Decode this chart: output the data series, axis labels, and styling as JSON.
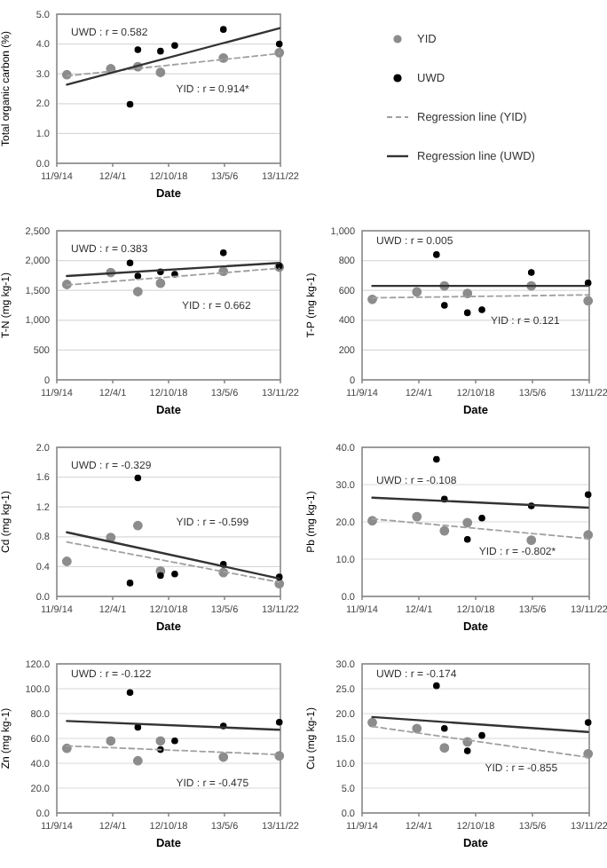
{
  "chart_data": [
    {
      "type": "scatter",
      "xlabel": "Date",
      "ylabel": "Total organic carbon (%)",
      "xlim": [
        "2011-09-14",
        "2013-11-22"
      ],
      "xticks": [
        {
          "value": "2011-09-14",
          "label": "11/9/14"
        },
        {
          "value": "2012-04-01",
          "label": "12/4/1"
        },
        {
          "value": "2012-10-18",
          "label": "12/10/18"
        },
        {
          "value": "2013-05-06",
          "label": "13/5/6"
        },
        {
          "value": "2013-11-22",
          "label": "13/11/22"
        }
      ],
      "ylim": [
        0,
        5
      ],
      "yticks": [
        {
          "value": 0,
          "label": "0.0"
        },
        {
          "value": 1,
          "label": "1.0"
        },
        {
          "value": 2,
          "label": "2.0"
        },
        {
          "value": 3,
          "label": "3.0"
        },
        {
          "value": 4,
          "label": "4.0"
        },
        {
          "value": 5,
          "label": "5.0"
        }
      ],
      "grid": "y",
      "legend": "right",
      "series": [
        {
          "name": "YID",
          "marker": "circle",
          "color": "#8c8c8c",
          "x": [
            "2011-10-20",
            "2012-03-25",
            "2012-06-30",
            "2012-09-19",
            "2013-05-02",
            "2013-11-18"
          ],
          "values": [
            2.97,
            3.17,
            3.24,
            3.05,
            3.53,
            3.71
          ]
        },
        {
          "name": "UWD",
          "marker": "circle",
          "color": "#000000",
          "x": [
            "2012-06-02",
            "2012-06-30",
            "2012-09-19",
            "2012-11-09",
            "2013-05-02",
            "2013-11-18"
          ],
          "values": [
            1.98,
            3.81,
            3.76,
            3.95,
            4.49,
            4.0
          ]
        },
        {
          "name": "Regression line (YID)",
          "type": "line",
          "marker": "none",
          "line_style": "dashed",
          "color": "#a0a0a0",
          "x": [
            "2011-10-20",
            "2013-11-18"
          ],
          "values": [
            2.93,
            3.68
          ]
        },
        {
          "name": "Regression line (UWD)",
          "type": "line",
          "marker": "none",
          "line_style": "solid",
          "color": "#333333",
          "x": [
            "2011-10-20",
            "2013-11-18"
          ],
          "values": [
            2.64,
            4.53
          ]
        }
      ],
      "annotations": [
        "UWD : r = 0.582",
        "YID : r = 0.914*"
      ]
    },
    {
      "type": "scatter",
      "xlabel": "Date",
      "ylabel": "T-N (mg kg-1)",
      "xlim": [
        "2011-09-14",
        "2013-11-22"
      ],
      "xticks": [
        {
          "value": "2011-09-14",
          "label": "11/9/14"
        },
        {
          "value": "2012-04-01",
          "label": "12/4/1"
        },
        {
          "value": "2012-10-18",
          "label": "12/10/18"
        },
        {
          "value": "2013-05-06",
          "label": "13/5/6"
        },
        {
          "value": "2013-11-22",
          "label": "13/11/22"
        }
      ],
      "ylim": [
        0,
        2500
      ],
      "yticks": [
        0,
        500,
        {
          "value": 1000,
          "label": "1,000"
        },
        {
          "value": 1500,
          "label": "1,500"
        },
        {
          "value": 2000,
          "label": "2,000"
        },
        {
          "value": 2500,
          "label": "2,500"
        }
      ],
      "grid": "y",
      "series": [
        {
          "marker": "circle",
          "color": "#8c8c8c",
          "x": [
            "2011-10-20",
            "2012-03-25",
            "2012-06-30",
            "2012-09-19",
            "2013-05-02",
            "2013-11-18"
          ],
          "values": [
            1600,
            1800,
            1480,
            1620,
            1820,
            1890
          ]
        },
        {
          "marker": "circle",
          "color": "#000000",
          "x": [
            "2012-06-02",
            "2012-06-30",
            "2012-09-19",
            "2012-11-09",
            "2013-05-02",
            "2013-11-18"
          ],
          "values": [
            1960,
            1740,
            1810,
            1770,
            2130,
            1910
          ]
        },
        {
          "type": "line",
          "marker": "none",
          "line_style": "dashed",
          "color": "#a0a0a0",
          "x": [
            "2011-10-20",
            "2013-11-18"
          ],
          "values": [
            1590,
            1870
          ]
        },
        {
          "type": "line",
          "marker": "none",
          "line_style": "solid",
          "color": "#333333",
          "x": [
            "2011-10-20",
            "2013-11-18"
          ],
          "values": [
            1740,
            1960
          ]
        }
      ],
      "annotations": [
        "UWD : r = 0.383",
        "YID : r = 0.662"
      ]
    },
    {
      "type": "scatter",
      "xlabel": "Date",
      "ylabel": "T-P (mg kg-1)",
      "xlim": [
        "2011-09-14",
        "2013-11-22"
      ],
      "xticks": [
        {
          "value": "2011-09-14",
          "label": "11/9/14"
        },
        {
          "value": "2012-04-01",
          "label": "12/4/1"
        },
        {
          "value": "2012-10-18",
          "label": "12/10/18"
        },
        {
          "value": "2013-05-06",
          "label": "13/5/6"
        },
        {
          "value": "2013-11-22",
          "label": "13/11/22"
        }
      ],
      "ylim": [
        0,
        1000
      ],
      "yticks": [
        0,
        200,
        400,
        600,
        800,
        {
          "value": 1000,
          "label": "1,000"
        }
      ],
      "grid": "y",
      "series": [
        {
          "marker": "circle",
          "color": "#8c8c8c",
          "x": [
            "2011-10-20",
            "2012-03-25",
            "2012-06-30",
            "2012-09-19",
            "2013-05-02",
            "2013-11-18"
          ],
          "values": [
            540,
            590,
            630,
            580,
            630,
            530
          ]
        },
        {
          "marker": "circle",
          "color": "#000000",
          "x": [
            "2012-06-02",
            "2012-06-30",
            "2012-09-19",
            "2012-11-09",
            "2013-05-02",
            "2013-11-18"
          ],
          "values": [
            840,
            500,
            450,
            470,
            720,
            650
          ]
        },
        {
          "type": "line",
          "marker": "none",
          "line_style": "dashed",
          "color": "#a0a0a0",
          "x": [
            "2011-10-20",
            "2013-11-18"
          ],
          "values": [
            550,
            570
          ]
        },
        {
          "type": "line",
          "marker": "none",
          "line_style": "solid",
          "color": "#333333",
          "x": [
            "2011-10-20",
            "2013-11-18"
          ],
          "values": [
            630,
            630
          ]
        }
      ],
      "annotations": [
        "UWD : r = 0.005",
        "YID : r = 0.121"
      ]
    },
    {
      "type": "scatter",
      "xlabel": "Date",
      "ylabel": "Cd (mg kg-1)",
      "xlim": [
        "2011-09-14",
        "2013-11-22"
      ],
      "xticks": [
        {
          "value": "2011-09-14",
          "label": "11/9/14"
        },
        {
          "value": "2012-04-01",
          "label": "12/4/1"
        },
        {
          "value": "2012-10-18",
          "label": "12/10/18"
        },
        {
          "value": "2013-05-06",
          "label": "13/5/6"
        },
        {
          "value": "2013-11-22",
          "label": "13/11/22"
        }
      ],
      "ylim": [
        0,
        2
      ],
      "yticks": [
        {
          "value": 0,
          "label": "0.0"
        },
        0.4,
        0.8,
        1.2,
        1.6,
        {
          "value": 2,
          "label": "2.0"
        }
      ],
      "grid": "y",
      "series": [
        {
          "marker": "circle",
          "color": "#8c8c8c",
          "x": [
            "2011-10-20",
            "2012-03-25",
            "2012-06-30",
            "2012-09-19",
            "2013-05-02",
            "2013-11-18"
          ],
          "values": [
            0.47,
            0.79,
            0.95,
            0.34,
            0.32,
            0.17
          ]
        },
        {
          "marker": "circle",
          "color": "#000000",
          "x": [
            "2012-06-02",
            "2012-06-30",
            "2012-09-19",
            "2012-11-09",
            "2013-05-02",
            "2013-11-18"
          ],
          "values": [
            0.18,
            1.59,
            0.28,
            0.3,
            0.43,
            0.26
          ]
        },
        {
          "type": "line",
          "marker": "none",
          "line_style": "dashed",
          "color": "#a0a0a0",
          "x": [
            "2011-10-20",
            "2013-11-18"
          ],
          "values": [
            0.73,
            0.19
          ]
        },
        {
          "type": "line",
          "marker": "none",
          "line_style": "solid",
          "color": "#333333",
          "x": [
            "2011-10-20",
            "2013-11-18"
          ],
          "values": [
            0.86,
            0.24
          ]
        }
      ],
      "annotations": [
        "UWD : r = -0.329",
        "YID : r = -0.599"
      ]
    },
    {
      "type": "scatter",
      "xlabel": "Date",
      "ylabel": "Pb (mg kg-1)",
      "xlim": [
        "2011-09-14",
        "2013-11-22"
      ],
      "xticks": [
        {
          "value": "2011-09-14",
          "label": "11/9/14"
        },
        {
          "value": "2012-04-01",
          "label": "12/4/1"
        },
        {
          "value": "2012-10-18",
          "label": "12/10/18"
        },
        {
          "value": "2013-05-06",
          "label": "13/5/6"
        },
        {
          "value": "2013-11-22",
          "label": "13/11/22"
        }
      ],
      "ylim": [
        0,
        40
      ],
      "yticks": [
        {
          "value": 0,
          "label": "0.0"
        },
        {
          "value": 10,
          "label": "10.0"
        },
        {
          "value": 20,
          "label": "20.0"
        },
        {
          "value": 30,
          "label": "30.0"
        },
        {
          "value": 40,
          "label": "40.0"
        }
      ],
      "grid": "y",
      "series": [
        {
          "marker": "circle",
          "color": "#8c8c8c",
          "x": [
            "2011-10-20",
            "2012-03-25",
            "2012-06-30",
            "2012-09-19",
            "2013-05-02",
            "2013-11-18"
          ],
          "values": [
            20.3,
            21.4,
            17.6,
            19.8,
            15.1,
            16.5
          ]
        },
        {
          "marker": "circle",
          "color": "#000000",
          "x": [
            "2012-06-02",
            "2012-06-30",
            "2012-09-19",
            "2012-11-09",
            "2013-05-02",
            "2013-11-18"
          ],
          "values": [
            36.8,
            26.1,
            15.3,
            21.0,
            24.3,
            27.3
          ]
        },
        {
          "type": "line",
          "marker": "none",
          "line_style": "dashed",
          "color": "#a0a0a0",
          "x": [
            "2011-10-20",
            "2013-11-18"
          ],
          "values": [
            20.8,
            15.5
          ]
        },
        {
          "type": "line",
          "marker": "none",
          "line_style": "solid",
          "color": "#333333",
          "x": [
            "2011-10-20",
            "2013-11-18"
          ],
          "values": [
            26.5,
            23.8
          ]
        }
      ],
      "annotations": [
        "UWD : r = -0.108",
        "YID : r = -0.802*"
      ]
    },
    {
      "type": "scatter",
      "xlabel": "Date",
      "ylabel": "Zn (mg kg-1)",
      "xlim": [
        "2011-09-14",
        "2013-11-22"
      ],
      "xticks": [
        {
          "value": "2011-09-14",
          "label": "11/9/14"
        },
        {
          "value": "2012-04-01",
          "label": "12/4/1"
        },
        {
          "value": "2012-10-18",
          "label": "12/10/18"
        },
        {
          "value": "2013-05-06",
          "label": "13/5/6"
        },
        {
          "value": "2013-11-22",
          "label": "13/11/22"
        }
      ],
      "ylim": [
        0,
        120
      ],
      "yticks": [
        {
          "value": 0,
          "label": "0.0"
        },
        {
          "value": 20,
          "label": "20.0"
        },
        {
          "value": 40,
          "label": "40.0"
        },
        {
          "value": 60,
          "label": "60.0"
        },
        {
          "value": 80,
          "label": "80.0"
        },
        {
          "value": 100,
          "label": "100.0"
        },
        {
          "value": 120,
          "label": "120.0"
        }
      ],
      "grid": "y",
      "series": [
        {
          "marker": "circle",
          "color": "#8c8c8c",
          "x": [
            "2011-10-20",
            "2012-03-25",
            "2012-06-30",
            "2012-09-19",
            "2013-05-02",
            "2013-11-18"
          ],
          "values": [
            52,
            58,
            42,
            58,
            45,
            46
          ]
        },
        {
          "marker": "circle",
          "color": "#000000",
          "x": [
            "2012-06-02",
            "2012-06-30",
            "2012-09-19",
            "2012-11-09",
            "2013-05-02",
            "2013-11-18"
          ],
          "values": [
            97,
            69,
            51,
            58,
            70,
            73
          ]
        },
        {
          "type": "line",
          "marker": "none",
          "line_style": "dashed",
          "color": "#a0a0a0",
          "x": [
            "2011-10-20",
            "2013-11-18"
          ],
          "values": [
            54,
            47
          ]
        },
        {
          "type": "line",
          "marker": "none",
          "line_style": "solid",
          "color": "#333333",
          "x": [
            "2011-10-20",
            "2013-11-18"
          ],
          "values": [
            74,
            67
          ]
        }
      ],
      "annotations": [
        "UWD : r = -0.122",
        "YID : r = -0.475"
      ]
    },
    {
      "type": "scatter",
      "xlabel": "Date",
      "ylabel": "Cu (mg kg-1)",
      "xlim": [
        "2011-09-14",
        "2013-11-22"
      ],
      "xticks": [
        {
          "value": "2011-09-14",
          "label": "11/9/14"
        },
        {
          "value": "2012-04-01",
          "label": "12/4/1"
        },
        {
          "value": "2012-10-18",
          "label": "12/10/18"
        },
        {
          "value": "2013-05-06",
          "label": "13/5/6"
        },
        {
          "value": "2013-11-22",
          "label": "13/11/22"
        }
      ],
      "ylim": [
        0,
        30
      ],
      "yticks": [
        {
          "value": 0,
          "label": "0.0"
        },
        {
          "value": 5,
          "label": "5.0"
        },
        {
          "value": 10,
          "label": "10.0"
        },
        {
          "value": 15,
          "label": "15.0"
        },
        {
          "value": 20,
          "label": "20.0"
        },
        {
          "value": 25,
          "label": "25.0"
        },
        {
          "value": 30,
          "label": "30.0"
        }
      ],
      "grid": "y",
      "series": [
        {
          "marker": "circle",
          "color": "#8c8c8c",
          "x": [
            "2011-10-20",
            "2012-03-25",
            "2012-06-30",
            "2012-09-19",
            "2013-11-18"
          ],
          "values": [
            18.2,
            17.0,
            13.1,
            14.3,
            11.9
          ]
        },
        {
          "marker": "circle",
          "color": "#000000",
          "x": [
            "2012-06-02",
            "2012-06-30",
            "2012-09-19",
            "2012-11-09",
            "2013-11-18"
          ],
          "values": [
            25.6,
            17.0,
            12.5,
            15.6,
            18.2
          ]
        },
        {
          "type": "line",
          "marker": "none",
          "line_style": "dashed",
          "color": "#a0a0a0",
          "x": [
            "2011-10-20",
            "2013-11-18"
          ],
          "values": [
            17.4,
            11.2
          ]
        },
        {
          "type": "line",
          "marker": "none",
          "line_style": "solid",
          "color": "#333333",
          "x": [
            "2011-10-20",
            "2013-11-18"
          ],
          "values": [
            19.3,
            16.3
          ]
        }
      ],
      "annotations": [
        "UWD : r = -0.174",
        "YID : r = -0.855"
      ]
    }
  ]
}
